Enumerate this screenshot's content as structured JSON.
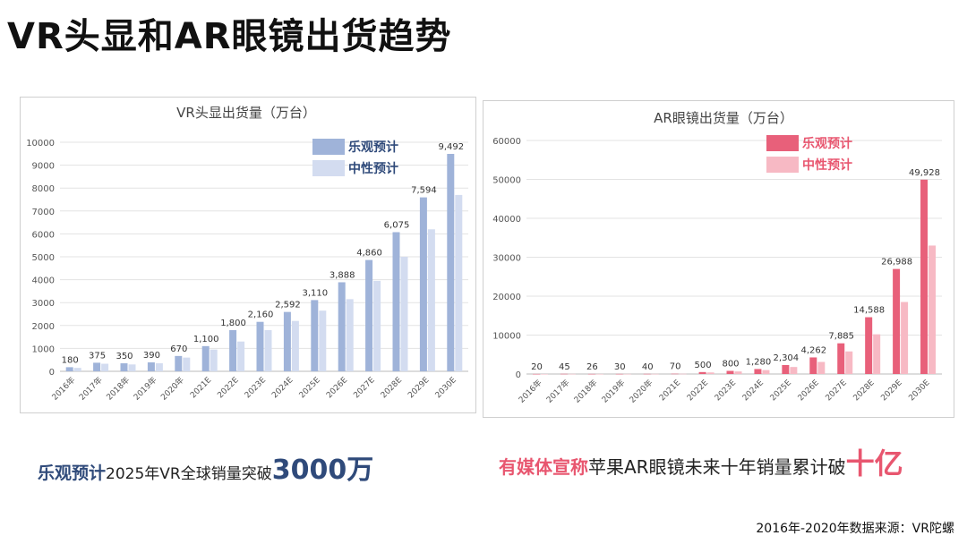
{
  "page_title": "VR头显和AR眼镜出货趋势",
  "chart_data": [
    {
      "type": "bar",
      "title": "VR头显出货量（万台）",
      "categories": [
        "2016年",
        "2017年",
        "2018年",
        "2019年",
        "2020年",
        "2021E",
        "2022E",
        "2023E",
        "2024E",
        "2025E",
        "2026E",
        "2027E",
        "2028E",
        "2029E",
        "2030E"
      ],
      "series": [
        {
          "name": "乐观预计",
          "color": "#9fb3d9",
          "values": [
            180,
            375,
            350,
            390,
            670,
            1100,
            1800,
            2160,
            2592,
            3110,
            3888,
            4860,
            6075,
            7594,
            9492
          ]
        },
        {
          "name": "中性预计",
          "color": "#d3dcf0",
          "values": [
            150,
            330,
            300,
            350,
            600,
            950,
            1300,
            1800,
            2200,
            2650,
            3150,
            3950,
            5000,
            6200,
            7700
          ]
        }
      ],
      "data_labels": [
        "180",
        "375",
        "350",
        "390",
        "670",
        "1,100",
        "1,800",
        "2,160",
        "2,592",
        "3,110",
        "3,888",
        "4,860",
        "6,075",
        "7,594",
        "9,492"
      ],
      "yticks": [
        0,
        1000,
        2000,
        3000,
        4000,
        5000,
        6000,
        7000,
        8000,
        9000,
        10000
      ],
      "ylim": [
        0,
        10000
      ],
      "grid": true,
      "legend": "top-right"
    },
    {
      "type": "bar",
      "title": "AR眼镜出货量（万台）",
      "categories": [
        "2016年",
        "2017年",
        "2018年",
        "2019年",
        "2020年",
        "2021E",
        "2022E",
        "2023E",
        "2024E",
        "2025E",
        "2026E",
        "2027E",
        "2028E",
        "2029E",
        "2030E"
      ],
      "series": [
        {
          "name": "乐观预计",
          "color": "#e8607a",
          "values": [
            20,
            45,
            26,
            30,
            40,
            70,
            500,
            800,
            1280,
            2304,
            4262,
            7885,
            14588,
            26988,
            49928
          ]
        },
        {
          "name": "中性预计",
          "color": "#f7b9c4",
          "values": [
            15,
            35,
            20,
            25,
            32,
            55,
            400,
            650,
            1000,
            1800,
            3100,
            5800,
            10200,
            18500,
            33000
          ]
        }
      ],
      "data_labels": [
        "20",
        "45",
        "26",
        "30",
        "40",
        "70",
        "500",
        "800",
        "1,280",
        "2,304",
        "4,262",
        "7,885",
        "14,588",
        "26,988",
        "49,928"
      ],
      "yticks": [
        0,
        10000,
        20000,
        30000,
        40000,
        50000,
        60000
      ],
      "ylim": [
        0,
        60000
      ],
      "grid": true,
      "legend": "top-right"
    }
  ],
  "captions": {
    "left": {
      "highlight": "乐观预计",
      "text": "2025年VR全球销量突破",
      "big": "3000万"
    },
    "right": {
      "highlight": "有媒体宣称",
      "text": "苹果AR眼镜未来十年销量累计破",
      "big": "十亿"
    }
  },
  "source": "2016年-2020年数据来源：VR陀螺"
}
